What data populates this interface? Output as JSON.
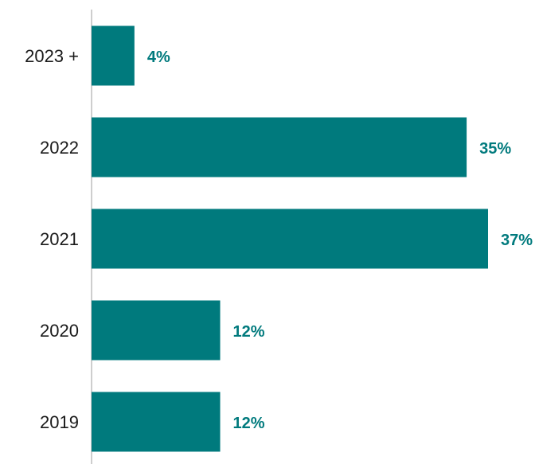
{
  "chart_data": {
    "type": "bar",
    "orientation": "horizontal",
    "categories": [
      "2023 +",
      "2022",
      "2021",
      "2020",
      "2019"
    ],
    "values": [
      4,
      35,
      37,
      12,
      12
    ],
    "data_labels": [
      "4%",
      "35%",
      "37%",
      "12%",
      "12%"
    ],
    "unit": "%",
    "xlim": [
      0,
      37
    ],
    "grid": false,
    "legend": "none",
    "bar_color": "#007a7d",
    "label_color": "#007a7d"
  }
}
